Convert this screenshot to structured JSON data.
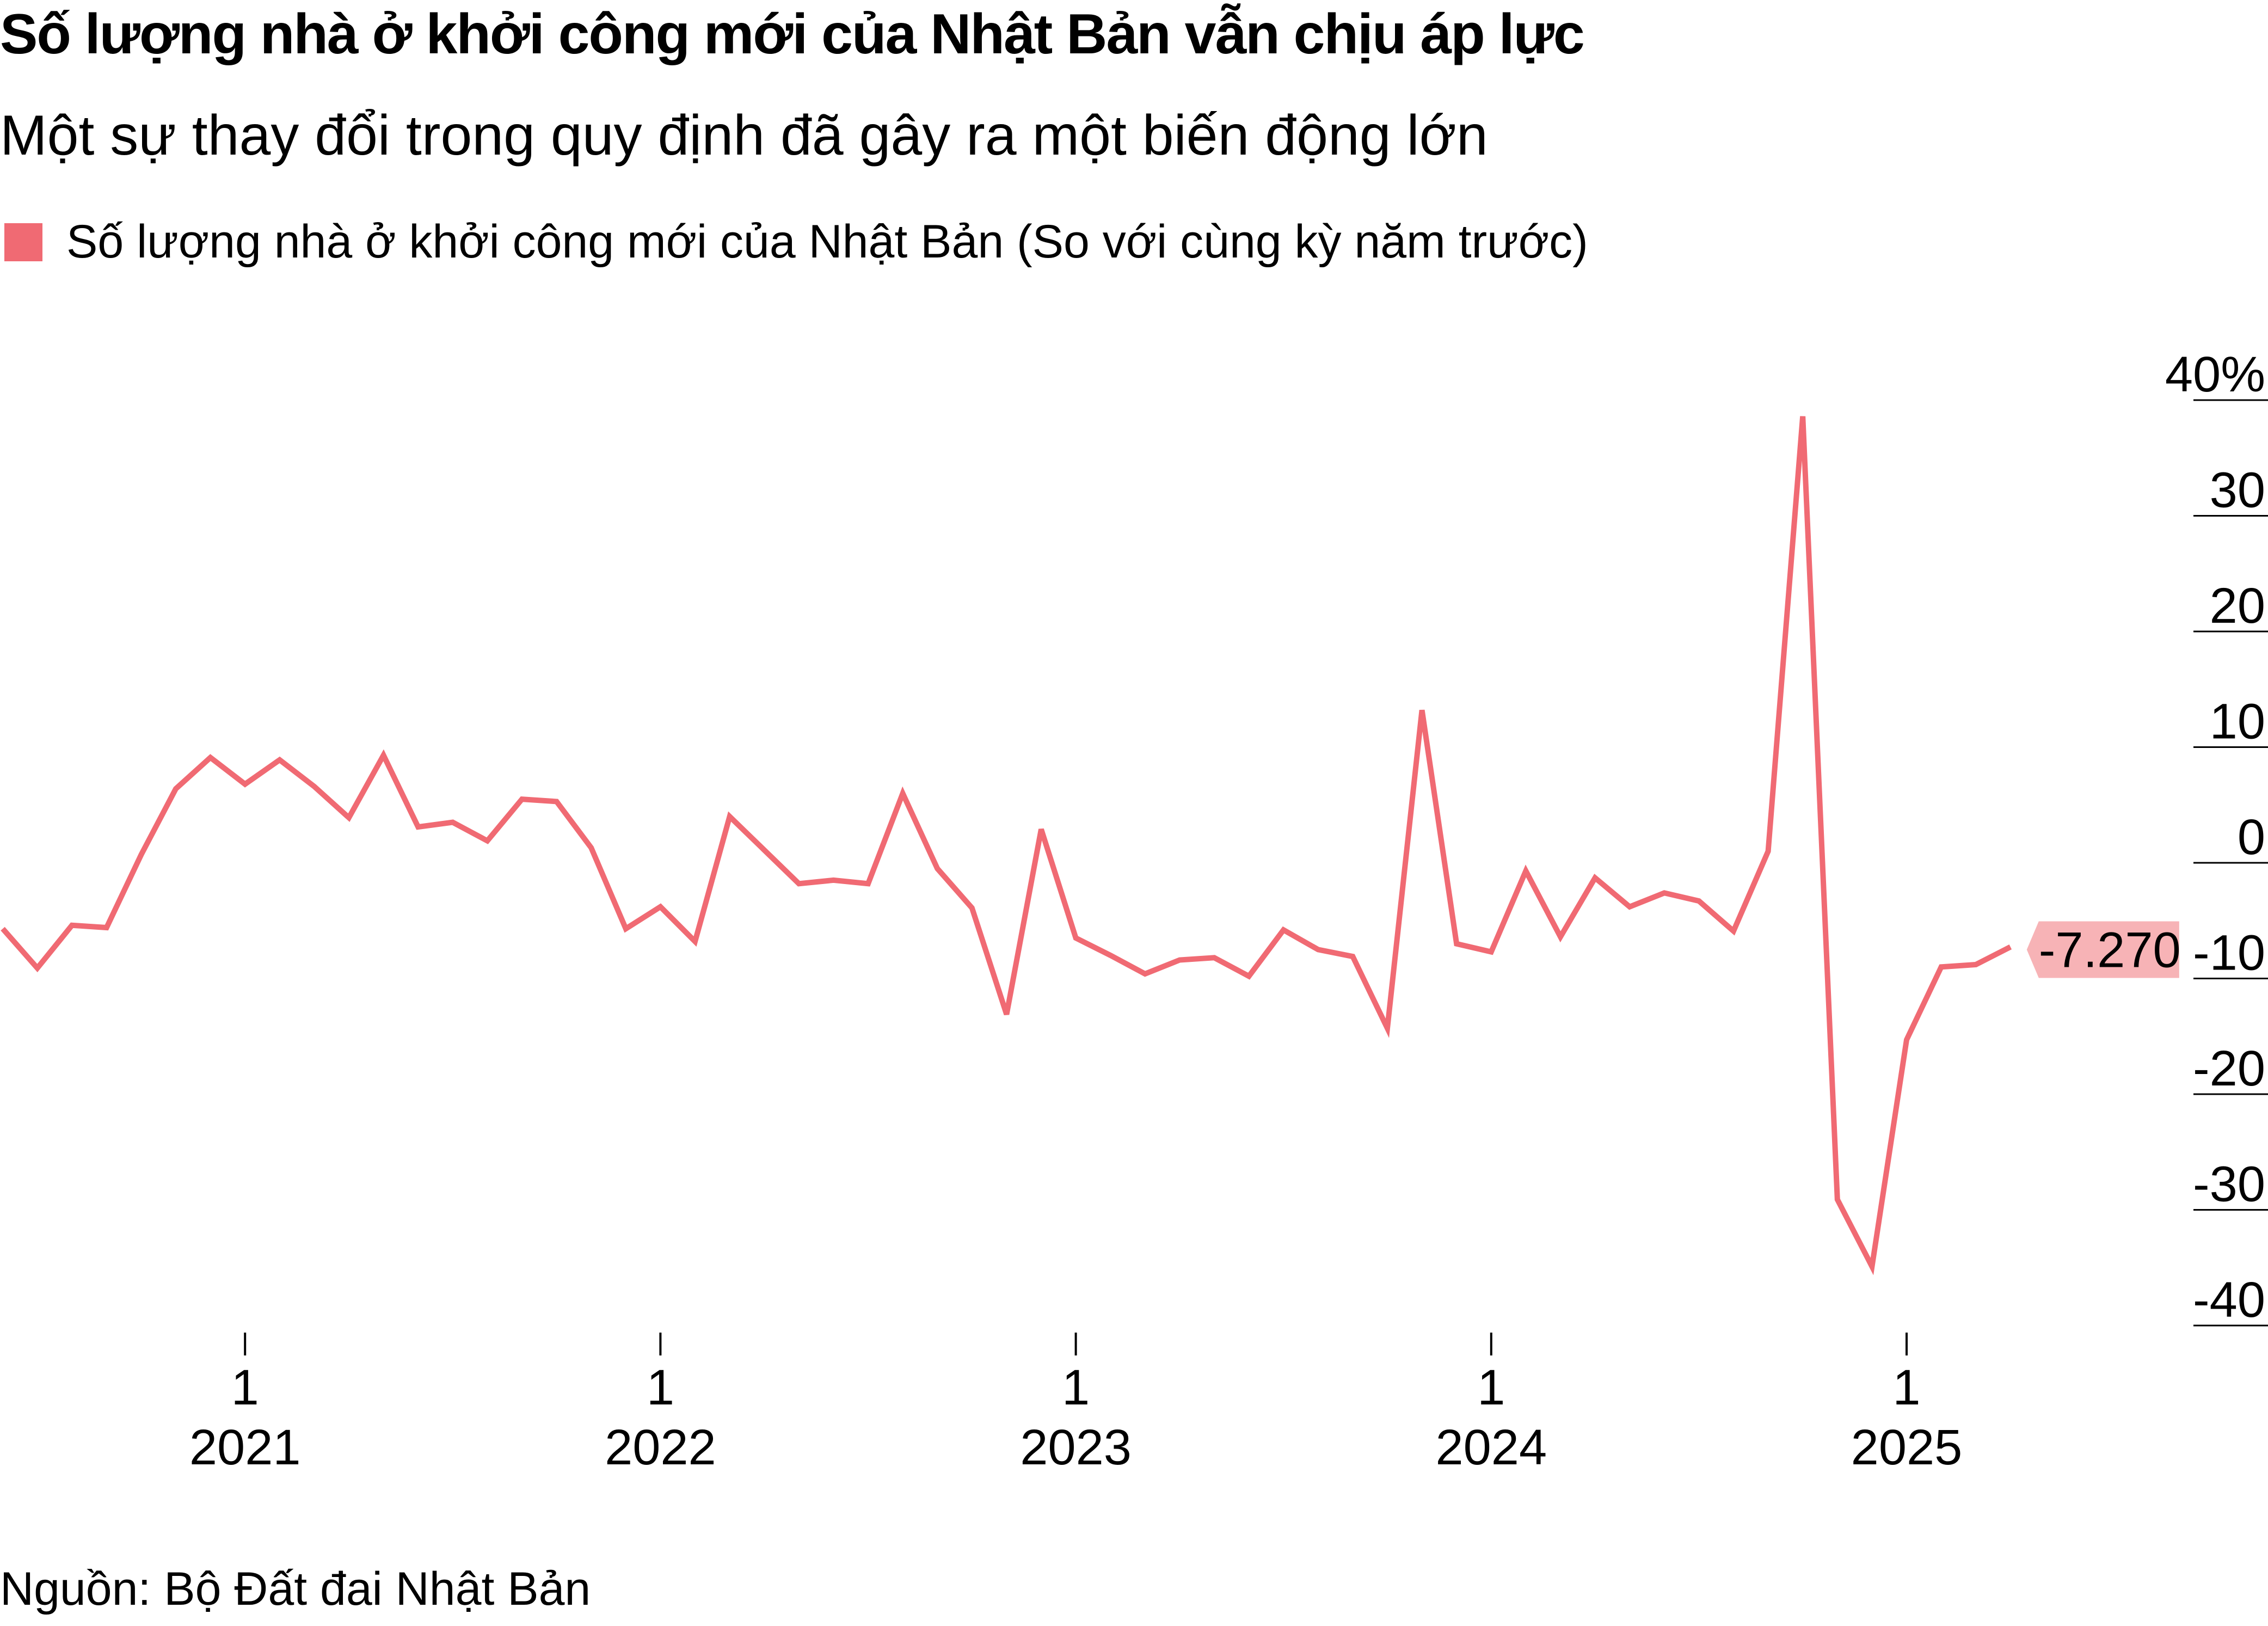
{
  "title": "Số lượng nhà ở khởi công mới của Nhật Bản vẫn chịu áp lực",
  "subtitle": "Một sự thay đổi trong quy định đã gây ra một biến động lớn",
  "legend": {
    "label": "Số lượng nhà ở khởi công mới của Nhật Bản (So với cùng kỳ năm trước)"
  },
  "source": "Nguồn: Bộ Đất đai Nhật Bản",
  "colors": {
    "line": "#f06a73",
    "label_bg": "#f7b3b6",
    "gridline": "#000000"
  },
  "chart_data": {
    "type": "line",
    "title": "Số lượng nhà ở khởi công mới của Nhật Bản vẫn chịu áp lực",
    "subtitle": "Một sự thay đổi trong quy định đã gây ra một biến động lớn",
    "ylim": [
      -40,
      40
    ],
    "yticks": [
      40,
      30,
      20,
      10,
      0,
      -10,
      -20,
      -30,
      -40
    ],
    "ytick_labels": [
      "40%",
      "30",
      "20",
      "10",
      "0",
      "-10",
      "-20",
      "-30",
      "-40"
    ],
    "xticks": [
      {
        "date": "2021-01",
        "month": "1",
        "year": "2021"
      },
      {
        "date": "2022-01",
        "month": "1",
        "year": "2022"
      },
      {
        "date": "2023-01",
        "month": "1",
        "year": "2023"
      },
      {
        "date": "2024-01",
        "month": "1",
        "year": "2024"
      },
      {
        "date": "2025-01",
        "month": "1",
        "year": "2025"
      }
    ],
    "last_value_label": "-7.270",
    "series": [
      {
        "name": "Số lượng nhà ở khởi công mới của Nhật Bản (So với cùng kỳ năm trước)",
        "x": [
          "2020-06",
          "2020-07",
          "2020-08",
          "2020-09",
          "2020-10",
          "2020-11",
          "2020-12",
          "2021-01",
          "2021-02",
          "2021-03",
          "2021-04",
          "2021-05",
          "2021-06",
          "2021-07",
          "2021-08",
          "2021-09",
          "2021-10",
          "2021-11",
          "2021-12",
          "2022-01",
          "2022-02",
          "2022-03",
          "2022-04",
          "2022-05",
          "2022-06",
          "2022-07",
          "2022-08",
          "2022-09",
          "2022-10",
          "2022-11",
          "2022-12",
          "2023-01",
          "2023-02",
          "2023-03",
          "2023-04",
          "2023-05",
          "2023-06",
          "2023-07",
          "2023-08",
          "2023-09",
          "2023-10",
          "2023-11",
          "2023-12",
          "2024-01",
          "2024-02",
          "2024-03",
          "2024-04",
          "2024-05",
          "2024-06",
          "2024-07",
          "2024-08",
          "2024-09",
          "2024-10",
          "2024-11",
          "2024-12",
          "2025-01",
          "2025-02",
          "2025-03",
          "2025-04"
        ],
        "values": [
          -5.7,
          -9.1,
          -5.4,
          -5.6,
          0.7,
          6.4,
          9.1,
          6.8,
          8.9,
          6.6,
          3.9,
          9.3,
          3.1,
          3.5,
          1.9,
          5.5,
          5.3,
          1.3,
          -5.7,
          -3.8,
          -6.8,
          4.0,
          1.1,
          -1.8,
          -1.5,
          -1.8,
          6.0,
          -0.5,
          -3.9,
          -13.1,
          2.9,
          -6.5,
          -8.0,
          -9.6,
          -8.4,
          -8.2,
          -9.8,
          -5.8,
          -7.5,
          -8.1,
          -14.3,
          13.2,
          -7.0,
          -7.7,
          -0.7,
          -6.4,
          -1.3,
          -3.8,
          -2.6,
          -3.3,
          -5.9,
          1.0,
          38.6,
          -29.1,
          -34.9,
          -15.3,
          -9.0,
          -8.8,
          -7.27
        ]
      }
    ]
  }
}
